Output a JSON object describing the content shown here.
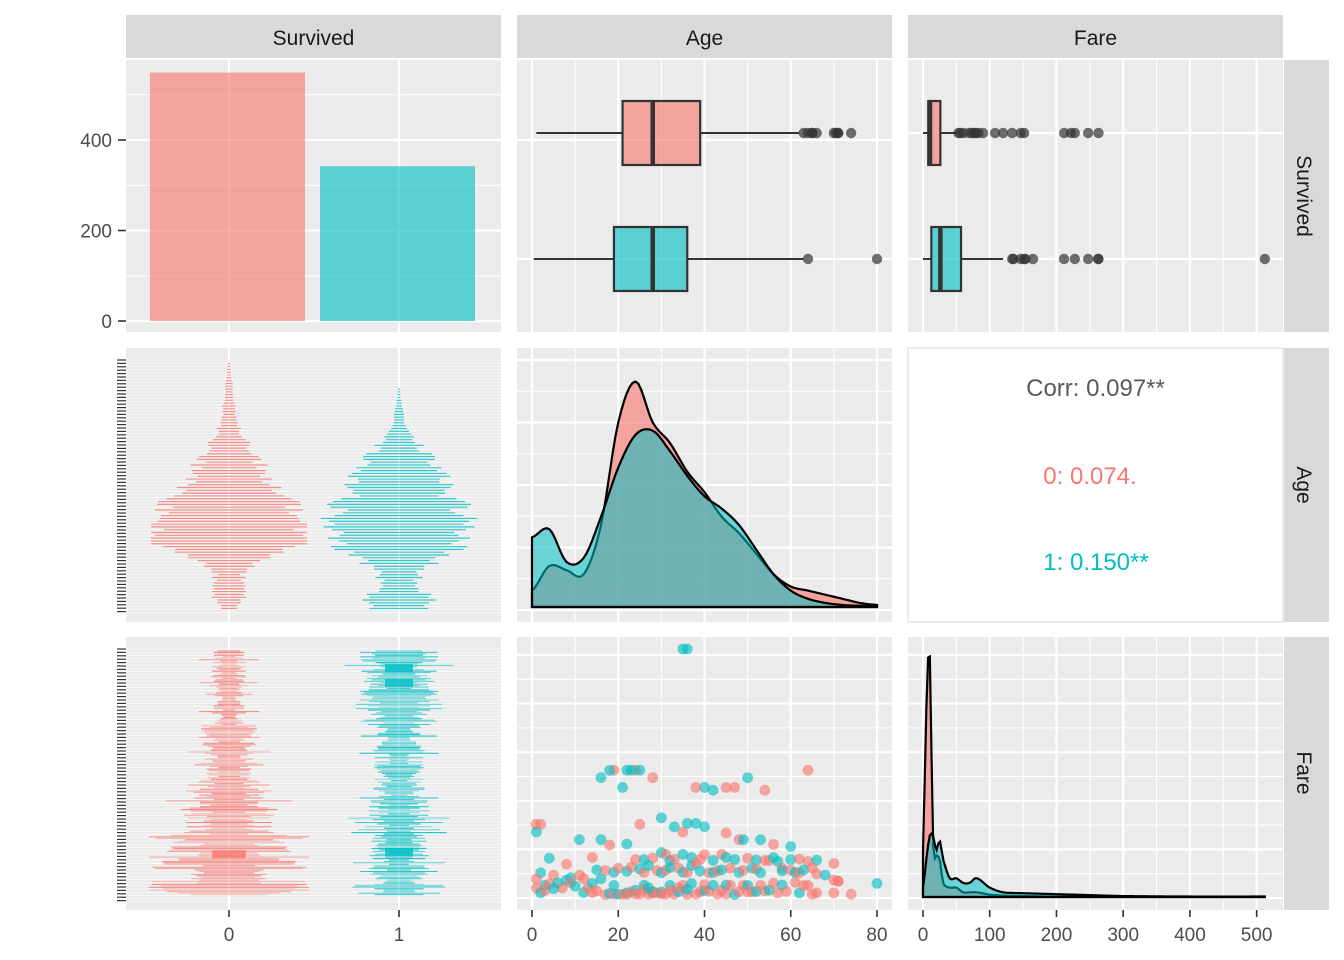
{
  "chart_data": {
    "type": "pairs",
    "variables": [
      "Survived",
      "Age",
      "Fare"
    ],
    "group_colors": {
      "0": "#F8766D",
      "1": "#00BFC4"
    },
    "survived_counts": {
      "categories": [
        "0",
        "1"
      ],
      "values": [
        549,
        342
      ]
    },
    "survived_axis": {
      "ticks": [
        0,
        200,
        400
      ]
    },
    "age_axis": {
      "ticks": [
        0,
        20,
        40,
        60,
        80
      ],
      "range": [
        0,
        80
      ]
    },
    "fare_axis": {
      "ticks": [
        0,
        100,
        200,
        300,
        400,
        500
      ],
      "range": [
        0,
        512
      ]
    },
    "x_category_ticks": [
      "0",
      "1"
    ],
    "age_boxplot": [
      {
        "group": "0",
        "min": 1,
        "q1": 21,
        "median": 28,
        "q3": 39,
        "max": 62,
        "outliers": [
          63,
          64,
          65,
          65,
          66,
          70,
          70.5,
          71,
          71,
          74
        ]
      },
      {
        "group": "1",
        "min": 0.42,
        "q1": 19,
        "median": 28,
        "q3": 36,
        "max": 63,
        "outliers": [
          64,
          80
        ]
      }
    ],
    "fare_boxplot": [
      {
        "group": "0",
        "min": 0,
        "q1": 7.85,
        "median": 10.5,
        "q3": 26,
        "max": 52,
        "outliers": [
          53,
          56,
          61,
          69.5,
          73.5,
          77,
          79.2,
          83,
          90,
          108,
          120,
          133.6,
          146.5,
          151.6,
          211.5,
          221.8,
          227.5,
          247.5,
          263
        ]
      },
      {
        "group": "1",
        "min": 0,
        "q1": 12.5,
        "median": 26,
        "q3": 57,
        "max": 120,
        "outliers": [
          133.7,
          135.6,
          146.5,
          151.6,
          153.5,
          164.9,
          211.3,
          227.5,
          247.5,
          262.4,
          263,
          512.3
        ]
      }
    ],
    "age_density": {
      "x": [
        0,
        4,
        8,
        12,
        16,
        20,
        24,
        28,
        32,
        36,
        40,
        44,
        48,
        52,
        56,
        60,
        64,
        68,
        72,
        76,
        80
      ],
      "group_0": [
        0.004,
        0.01,
        0.009,
        0.008,
        0.02,
        0.045,
        0.055,
        0.045,
        0.04,
        0.033,
        0.028,
        0.022,
        0.018,
        0.013,
        0.008,
        0.005,
        0.004,
        0.003,
        0.002,
        0.001,
        0.0005
      ],
      "group_1": [
        0.017,
        0.019,
        0.011,
        0.012,
        0.022,
        0.034,
        0.042,
        0.043,
        0.038,
        0.032,
        0.027,
        0.024,
        0.02,
        0.014,
        0.008,
        0.004,
        0.002,
        0.001,
        0.0005,
        0.0003,
        0.0002
      ]
    },
    "fare_density": {
      "x": [
        0,
        5,
        10,
        15,
        20,
        25,
        30,
        40,
        50,
        60,
        70,
        80,
        100,
        120,
        150,
        200,
        250,
        300,
        400,
        512
      ],
      "group_0": [
        0.01,
        0.04,
        0.052,
        0.012,
        0.009,
        0.008,
        0.003,
        0.002,
        0.002,
        0.001,
        0.001,
        0.001,
        0.0005,
        0.0003,
        0.0002,
        0.0001,
        0.0001,
        5e-05,
        2e-05,
        1e-05
      ],
      "group_1": [
        0.002,
        0.008,
        0.013,
        0.013,
        0.01,
        0.012,
        0.008,
        0.004,
        0.004,
        0.003,
        0.003,
        0.004,
        0.002,
        0.001,
        0.0008,
        0.0006,
        0.0004,
        0.0002,
        0.0001,
        0.0001
      ]
    },
    "age_fare_scatter": [
      {
        "g": 1,
        "age": 35,
        "fare": 512.3
      },
      {
        "g": 1,
        "age": 36,
        "fare": 512.3
      },
      {
        "g": 0,
        "age": 19,
        "fare": 263
      },
      {
        "g": 0,
        "age": 24,
        "fare": 263
      },
      {
        "g": 1,
        "age": 23,
        "fare": 263
      },
      {
        "g": 1,
        "age": 22,
        "fare": 263
      },
      {
        "g": 1,
        "age": 25,
        "fare": 263
      },
      {
        "g": 0,
        "age": 64,
        "fare": 263
      },
      {
        "g": 0,
        "age": 28,
        "fare": 247.5
      },
      {
        "g": 1,
        "age": 16,
        "fare": 247.5
      },
      {
        "g": 1,
        "age": 21,
        "fare": 227.5
      },
      {
        "g": 1,
        "age": 40,
        "fare": 227.5
      },
      {
        "g": 0,
        "age": 38,
        "fare": 227.5
      },
      {
        "g": 0,
        "age": 45,
        "fare": 227.5
      },
      {
        "g": 1,
        "age": 18,
        "fare": 262.4
      },
      {
        "g": 1,
        "age": 42,
        "fare": 221.8
      },
      {
        "g": 0,
        "age": 47,
        "fare": 227.5
      },
      {
        "g": 1,
        "age": 50,
        "fare": 247.5
      },
      {
        "g": 0,
        "age": 54,
        "fare": 221.8
      },
      {
        "g": 0,
        "age": 0.9,
        "fare": 151.6
      },
      {
        "g": 1,
        "age": 1,
        "fare": 136
      },
      {
        "g": 0,
        "age": 2,
        "fare": 151.6
      },
      {
        "g": 0,
        "age": 25,
        "fare": 151.6
      },
      {
        "g": 1,
        "age": 30,
        "fare": 164.9
      },
      {
        "g": 0,
        "age": 35,
        "fare": 135.6
      },
      {
        "g": 1,
        "age": 36,
        "fare": 153.5
      },
      {
        "g": 1,
        "age": 40,
        "fare": 146.5
      },
      {
        "g": 1,
        "age": 33,
        "fare": 146.5
      },
      {
        "g": 1,
        "age": 38,
        "fare": 153.5
      },
      {
        "g": 0,
        "age": 45,
        "fare": 133.7
      },
      {
        "g": 0,
        "age": 48,
        "fare": 120
      },
      {
        "g": 1,
        "age": 49,
        "fare": 120
      },
      {
        "g": 1,
        "age": 53,
        "fare": 120
      },
      {
        "g": 0,
        "age": 56,
        "fare": 110
      },
      {
        "g": 1,
        "age": 60,
        "fare": 106
      },
      {
        "g": 1,
        "age": 4,
        "fare": 81.9
      },
      {
        "g": 0,
        "age": 8,
        "fare": 69.5
      },
      {
        "g": 1,
        "age": 11,
        "fare": 120
      },
      {
        "g": 0,
        "age": 14,
        "fare": 83.5
      },
      {
        "g": 1,
        "age": 16,
        "fare": 120
      },
      {
        "g": 0,
        "age": 18,
        "fare": 108.9
      },
      {
        "g": 1,
        "age": 22,
        "fare": 110.9
      },
      {
        "g": 0,
        "age": 24,
        "fare": 79.2
      },
      {
        "g": 1,
        "age": 26,
        "fare": 78.9
      },
      {
        "g": 0,
        "age": 28,
        "fare": 82.2
      },
      {
        "g": 1,
        "age": 30,
        "fare": 93.5
      },
      {
        "g": 0,
        "age": 31,
        "fare": 90
      },
      {
        "g": 1,
        "age": 32,
        "fare": 76.7
      },
      {
        "g": 0,
        "age": 33,
        "fare": 79.6
      },
      {
        "g": 1,
        "age": 35,
        "fare": 90
      },
      {
        "g": 1,
        "age": 37,
        "fare": 83.2
      },
      {
        "g": 0,
        "age": 39,
        "fare": 79.2
      },
      {
        "g": 0,
        "age": 40,
        "fare": 89.1
      },
      {
        "g": 1,
        "age": 42,
        "fare": 77.3
      },
      {
        "g": 0,
        "age": 44,
        "fare": 90
      },
      {
        "g": 1,
        "age": 45,
        "fare": 83.5
      },
      {
        "g": 1,
        "age": 47,
        "fare": 79.2
      },
      {
        "g": 0,
        "age": 50,
        "fare": 81.9
      },
      {
        "g": 1,
        "age": 52,
        "fare": 78.3
      },
      {
        "g": 0,
        "age": 55,
        "fare": 77.3
      },
      {
        "g": 1,
        "age": 57,
        "fare": 75.2
      },
      {
        "g": 1,
        "age": 60,
        "fare": 79.2
      },
      {
        "g": 0,
        "age": 62,
        "fare": 80
      },
      {
        "g": 0,
        "age": 64,
        "fare": 75.3
      },
      {
        "g": 1,
        "age": 66,
        "fare": 77.9
      },
      {
        "g": 0,
        "age": 70,
        "fare": 71
      },
      {
        "g": 1,
        "age": 2,
        "fare": 52
      },
      {
        "g": 0,
        "age": 5,
        "fare": 46.9
      },
      {
        "g": 1,
        "age": 9,
        "fare": 41.6
      },
      {
        "g": 0,
        "age": 12,
        "fare": 39.7
      },
      {
        "g": 1,
        "age": 15,
        "fare": 57.9
      },
      {
        "g": 0,
        "age": 17,
        "fare": 56.5
      },
      {
        "g": 1,
        "age": 19,
        "fare": 53.1
      },
      {
        "g": 0,
        "age": 20,
        "fare": 61.4
      },
      {
        "g": 1,
        "age": 22,
        "fare": 55
      },
      {
        "g": 0,
        "age": 23,
        "fare": 63.4
      },
      {
        "g": 1,
        "age": 25,
        "fare": 59.4
      },
      {
        "g": 0,
        "age": 26,
        "fare": 52.6
      },
      {
        "g": 1,
        "age": 27,
        "fare": 66.6
      },
      {
        "g": 0,
        "age": 29,
        "fare": 56.5
      },
      {
        "g": 1,
        "age": 30,
        "fare": 51.9
      },
      {
        "g": 0,
        "age": 31,
        "fare": 57
      },
      {
        "g": 1,
        "age": 32,
        "fare": 62.6
      },
      {
        "g": 0,
        "age": 34,
        "fare": 61.2
      },
      {
        "g": 1,
        "age": 35,
        "fare": 53.1
      },
      {
        "g": 0,
        "age": 36,
        "fare": 52
      },
      {
        "g": 1,
        "age": 37,
        "fare": 66.6
      },
      {
        "g": 0,
        "age": 38,
        "fare": 71.3
      },
      {
        "g": 1,
        "age": 39,
        "fare": 55.4
      },
      {
        "g": 0,
        "age": 41,
        "fare": 51.9
      },
      {
        "g": 1,
        "age": 42,
        "fare": 52.6
      },
      {
        "g": 0,
        "age": 43,
        "fare": 55.9
      },
      {
        "g": 1,
        "age": 44,
        "fare": 57.9
      },
      {
        "g": 0,
        "age": 46,
        "fare": 61.2
      },
      {
        "g": 1,
        "age": 48,
        "fare": 52.6
      },
      {
        "g": 0,
        "age": 49,
        "fare": 56.9
      },
      {
        "g": 1,
        "age": 51,
        "fare": 61.4
      },
      {
        "g": 0,
        "age": 52,
        "fare": 59.4
      },
      {
        "g": 1,
        "age": 53,
        "fare": 51.9
      },
      {
        "g": 0,
        "age": 54,
        "fare": 77.3
      },
      {
        "g": 1,
        "age": 56,
        "fare": 83.2
      },
      {
        "g": 0,
        "age": 58,
        "fare": 61.2
      },
      {
        "g": 1,
        "age": 58,
        "fare": 55.9
      },
      {
        "g": 0,
        "age": 60,
        "fare": 57
      },
      {
        "g": 1,
        "age": 61,
        "fare": 52.6
      },
      {
        "g": 0,
        "age": 62,
        "fare": 52
      },
      {
        "g": 1,
        "age": 63,
        "fare": 57.9
      },
      {
        "g": 0,
        "age": 65,
        "fare": 61.9
      },
      {
        "g": 0,
        "age": 66,
        "fare": 49.5
      },
      {
        "g": 1,
        "age": 68,
        "fare": 47.1
      },
      {
        "g": 0,
        "age": 70,
        "fare": 36.8
      },
      {
        "g": 0,
        "age": 71,
        "fare": 34.7
      },
      {
        "g": 1,
        "age": 80,
        "fare": 30
      },
      {
        "g": 0,
        "age": 1,
        "fare": 39
      },
      {
        "g": 1,
        "age": 3,
        "fare": 26
      },
      {
        "g": 0,
        "age": 4,
        "fare": 29.1
      },
      {
        "g": 1,
        "age": 6,
        "fare": 31.3
      },
      {
        "g": 0,
        "age": 7,
        "fare": 21.1
      },
      {
        "g": 1,
        "age": 8,
        "fare": 36.8
      },
      {
        "g": 0,
        "age": 9,
        "fare": 31.4
      },
      {
        "g": 1,
        "age": 10,
        "fare": 24.2
      },
      {
        "g": 0,
        "age": 11,
        "fare": 46.9
      },
      {
        "g": 1,
        "age": 12,
        "fare": 11.2
      },
      {
        "g": 0,
        "age": 13,
        "fare": 20.6
      },
      {
        "g": 1,
        "age": 14,
        "fare": 30.1
      },
      {
        "g": 0,
        "age": 15,
        "fare": 14.5
      },
      {
        "g": 1,
        "age": 16,
        "fare": 39.4
      },
      {
        "g": 0,
        "age": 17,
        "fare": 7.2
      },
      {
        "g": 1,
        "age": 18,
        "fare": 9.4
      },
      {
        "g": 0,
        "age": 19,
        "fare": 8.1
      },
      {
        "g": 1,
        "age": 20,
        "fare": 7.9
      },
      {
        "g": 0,
        "age": 21,
        "fare": 7.7
      },
      {
        "g": 1,
        "age": 22,
        "fare": 10.5
      },
      {
        "g": 0,
        "age": 22,
        "fare": 7.25
      },
      {
        "g": 0,
        "age": 23,
        "fare": 13
      },
      {
        "g": 1,
        "age": 24,
        "fare": 16.1
      },
      {
        "g": 0,
        "age": 24,
        "fare": 8.05
      },
      {
        "g": 0,
        "age": 25,
        "fare": 7.9
      },
      {
        "g": 1,
        "age": 26,
        "fare": 26.3
      },
      {
        "g": 0,
        "age": 27,
        "fare": 7.8
      },
      {
        "g": 1,
        "age": 28,
        "fare": 13
      },
      {
        "g": 0,
        "age": 28,
        "fare": 9.5
      },
      {
        "g": 0,
        "age": 29,
        "fare": 10.5
      },
      {
        "g": 1,
        "age": 30,
        "fare": 12.5
      },
      {
        "g": 0,
        "age": 30,
        "fare": 8.66
      },
      {
        "g": 0,
        "age": 31,
        "fare": 7.75
      },
      {
        "g": 1,
        "age": 32,
        "fare": 26
      },
      {
        "g": 0,
        "age": 32,
        "fare": 15.5
      },
      {
        "g": 0,
        "age": 33,
        "fare": 8.05
      },
      {
        "g": 1,
        "age": 34,
        "fare": 13
      },
      {
        "g": 0,
        "age": 35,
        "fare": 26
      },
      {
        "g": 0,
        "age": 36,
        "fare": 7.5
      },
      {
        "g": 1,
        "age": 37,
        "fare": 29.7
      },
      {
        "g": 0,
        "age": 38,
        "fare": 7.9
      },
      {
        "g": 0,
        "age": 39,
        "fare": 13
      },
      {
        "g": 1,
        "age": 40,
        "fare": 15.5
      },
      {
        "g": 0,
        "age": 40,
        "fare": 27.7
      },
      {
        "g": 0,
        "age": 41,
        "fare": 14.1
      },
      {
        "g": 1,
        "age": 42,
        "fare": 26.3
      },
      {
        "g": 0,
        "age": 43,
        "fare": 8.05
      },
      {
        "g": 0,
        "age": 44,
        "fare": 16.1
      },
      {
        "g": 1,
        "age": 45,
        "fare": 26.5
      },
      {
        "g": 0,
        "age": 45,
        "fare": 8.05
      },
      {
        "g": 0,
        "age": 46,
        "fare": 25.9
      },
      {
        "g": 1,
        "age": 47,
        "fare": 7.1
      },
      {
        "g": 0,
        "age": 48,
        "fare": 13
      },
      {
        "g": 0,
        "age": 49,
        "fare": 25.9
      },
      {
        "g": 1,
        "age": 50,
        "fare": 26
      },
      {
        "g": 0,
        "age": 50,
        "fare": 13
      },
      {
        "g": 0,
        "age": 51,
        "fare": 12.5
      },
      {
        "g": 1,
        "age": 52,
        "fare": 13.5
      },
      {
        "g": 0,
        "age": 53,
        "fare": 26
      },
      {
        "g": 0,
        "age": 54,
        "fare": 14.5
      },
      {
        "g": 1,
        "age": 55,
        "fare": 16
      },
      {
        "g": 0,
        "age": 56,
        "fare": 30.7
      },
      {
        "g": 0,
        "age": 57,
        "fare": 10.5
      },
      {
        "g": 1,
        "age": 58,
        "fare": 26.6
      },
      {
        "g": 0,
        "age": 59,
        "fare": 13.5
      },
      {
        "g": 0,
        "age": 61,
        "fare": 32.3
      },
      {
        "g": 1,
        "age": 62,
        "fare": 10.5
      },
      {
        "g": 0,
        "age": 63,
        "fare": 25.6
      },
      {
        "g": 0,
        "age": 64,
        "fare": 26
      },
      {
        "g": 0,
        "age": 65,
        "fare": 7.75
      },
      {
        "g": 0,
        "age": 66,
        "fare": 10.5
      },
      {
        "g": 0,
        "age": 70,
        "fare": 10.5
      },
      {
        "g": 0,
        "age": 71,
        "fare": 34.7
      },
      {
        "g": 0,
        "age": 74,
        "fare": 7.8
      },
      {
        "g": 0,
        "age": 1,
        "fare": 20.6
      },
      {
        "g": 1,
        "age": 2,
        "fare": 10.5
      },
      {
        "g": 0,
        "age": 3,
        "fare": 15.9
      },
      {
        "g": 1,
        "age": 5,
        "fare": 19.3
      },
      {
        "g": 0,
        "age": 14,
        "fare": 11.2
      },
      {
        "g": 1,
        "age": 19,
        "fare": 26
      },
      {
        "g": 0,
        "age": 26,
        "fare": 18
      },
      {
        "g": 1,
        "age": 27,
        "fare": 21
      },
      {
        "g": 0,
        "age": 34,
        "fare": 21
      },
      {
        "g": 1,
        "age": 36,
        "fare": 17.8
      }
    ],
    "correlation": {
      "overall": "Corr: 0.097**",
      "group_0": "0: 0.074.",
      "group_1": "1: 0.150**"
    }
  }
}
